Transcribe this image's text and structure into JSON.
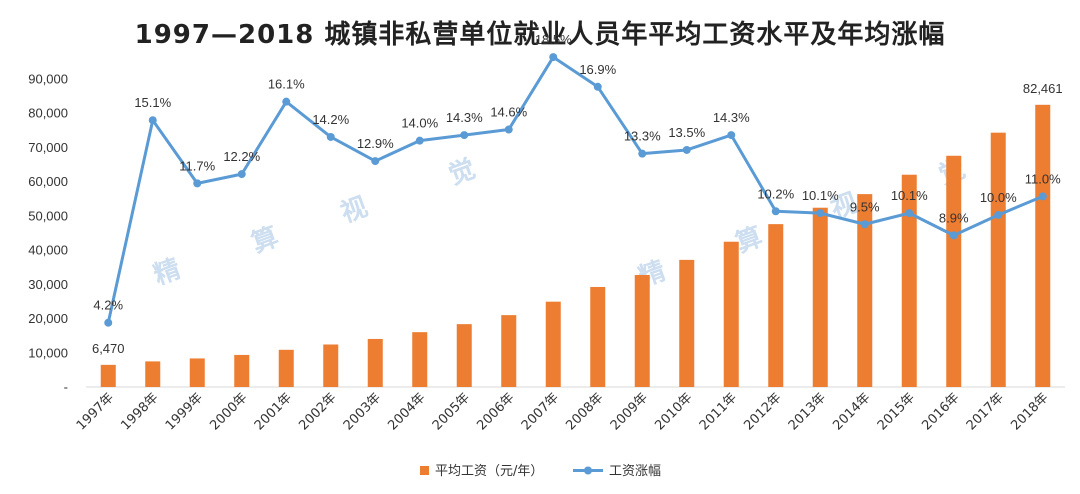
{
  "title": "1997—2018 城镇非私营单位就业人员年平均工资水平及年均涨幅",
  "watermark": [
    "精",
    "算",
    "视",
    "觉"
  ],
  "colors": {
    "bar": "#ed7d31",
    "line": "#5b9bd5",
    "grid": "#d9d9d9"
  },
  "chart_data": {
    "type": "bar",
    "title": "1997—2018 城镇非私营单位就业人员年平均工资水平及年均涨幅",
    "categories": [
      "1997年",
      "1998年",
      "1999年",
      "2000年",
      "2001年",
      "2002年",
      "2003年",
      "2004年",
      "2005年",
      "2006年",
      "2007年",
      "2008年",
      "2009年",
      "2010年",
      "2011年",
      "2012年",
      "2013年",
      "2014年",
      "2015年",
      "2016年",
      "2017年",
      "2018年"
    ],
    "series": [
      {
        "name": "平均工资（元/年）",
        "type": "bar",
        "values": [
          6470,
          7479,
          8346,
          9371,
          10870,
          12422,
          14040,
          16024,
          18364,
          21001,
          24932,
          29229,
          32736,
          37147,
          42452,
          47593,
          52388,
          56360,
          62029,
          67569,
          74318,
          82461
        ],
        "data_labels": {
          "0": "6,470",
          "21": "82,461"
        }
      },
      {
        "name": "工资涨幅",
        "type": "line",
        "values": [
          4.2,
          15.1,
          11.7,
          12.2,
          16.1,
          14.2,
          12.9,
          14.0,
          14.3,
          14.6,
          18.5,
          16.9,
          13.3,
          13.5,
          14.3,
          10.2,
          10.1,
          9.5,
          10.1,
          8.9,
          10.0,
          11.0
        ],
        "labels": [
          "4.2%",
          "15.1%",
          "11.7%",
          "12.2%",
          "16.1%",
          "14.2%",
          "12.9%",
          "14.0%",
          "14.3%",
          "14.6%",
          "18.5%",
          "16.9%",
          "13.3%",
          "13.5%",
          "14.3%",
          "10.2%",
          "10.1%",
          "9.5%",
          "10.1%",
          "8.9%",
          "10.0%",
          "11.0%"
        ]
      }
    ],
    "y_ticks": [
      "-",
      "10,000",
      "20,000",
      "30,000",
      "40,000",
      "50,000",
      "60,000",
      "70,000",
      "80,000",
      "90,000"
    ],
    "ylim": [
      0,
      90000
    ],
    "grid": false,
    "legend": "bottom"
  }
}
